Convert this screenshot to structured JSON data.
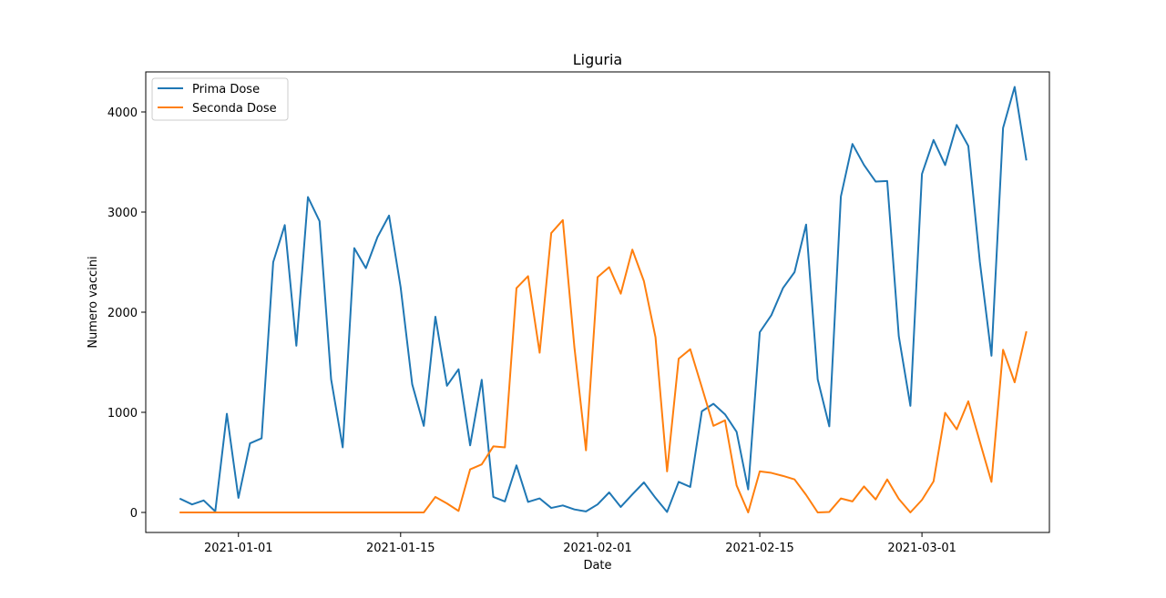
{
  "chart_data": {
    "type": "line",
    "title": "Liguria",
    "xlabel": "Date",
    "ylabel": "Numero vaccini",
    "xlim": [
      "2020-12-24",
      "2021-03-12"
    ],
    "ylim": [
      -200,
      4400
    ],
    "x_ticks": [
      "2021-01-01",
      "2021-01-15",
      "2021-02-01",
      "2021-02-15",
      "2021-03-01"
    ],
    "y_ticks": [
      0,
      1000,
      2000,
      3000,
      4000
    ],
    "grid": false,
    "legend_position": "top-left",
    "x": [
      "2020-12-27",
      "2020-12-28",
      "2020-12-29",
      "2020-12-30",
      "2020-12-31",
      "2021-01-01",
      "2021-01-02",
      "2021-01-03",
      "2021-01-04",
      "2021-01-05",
      "2021-01-06",
      "2021-01-07",
      "2021-01-08",
      "2021-01-09",
      "2021-01-10",
      "2021-01-11",
      "2021-01-12",
      "2021-01-13",
      "2021-01-14",
      "2021-01-15",
      "2021-01-16",
      "2021-01-17",
      "2021-01-18",
      "2021-01-19",
      "2021-01-20",
      "2021-01-21",
      "2021-01-22",
      "2021-01-23",
      "2021-01-24",
      "2021-01-25",
      "2021-01-26",
      "2021-01-27",
      "2021-01-28",
      "2021-01-29",
      "2021-01-30",
      "2021-01-31",
      "2021-02-01",
      "2021-02-02",
      "2021-02-03",
      "2021-02-04",
      "2021-02-05",
      "2021-02-06",
      "2021-02-07",
      "2021-02-08",
      "2021-02-09",
      "2021-02-10",
      "2021-02-11",
      "2021-02-12",
      "2021-02-13",
      "2021-02-14",
      "2021-02-15",
      "2021-02-16",
      "2021-02-17",
      "2021-02-18",
      "2021-02-19",
      "2021-02-20",
      "2021-02-21",
      "2021-02-22",
      "2021-02-23",
      "2021-02-24",
      "2021-02-25",
      "2021-02-26",
      "2021-02-27",
      "2021-02-28",
      "2021-03-01",
      "2021-03-02",
      "2021-03-03",
      "2021-03-04",
      "2021-03-05",
      "2021-03-06",
      "2021-03-07",
      "2021-03-08",
      "2021-03-09",
      "2021-03-10",
      "2021-03-11"
    ],
    "series": [
      {
        "name": "Prima Dose",
        "color": "#1f77b4",
        "values": [
          135,
          80,
          120,
          10,
          985,
          145,
          690,
          740,
          2500,
          2870,
          1665,
          3150,
          2910,
          1330,
          650,
          2640,
          2440,
          2750,
          2965,
          2250,
          1280,
          865,
          1955,
          1265,
          1430,
          670,
          1325,
          155,
          110,
          470,
          105,
          140,
          45,
          70,
          30,
          10,
          80,
          200,
          55,
          180,
          300,
          145,
          5,
          305,
          255,
          1010,
          1085,
          980,
          805,
          230,
          1800,
          1970,
          2240,
          2400,
          2875,
          1330,
          860,
          3155,
          3680,
          3470,
          3305,
          3310,
          1760,
          1065,
          3380,
          3720,
          3470,
          3870,
          3660,
          2500,
          1565,
          3840,
          4250,
          3525,
          null
        ]
      },
      {
        "name": "Seconda Dose",
        "color": "#ff7f0e",
        "values": [
          0,
          0,
          0,
          0,
          0,
          0,
          0,
          0,
          0,
          0,
          0,
          0,
          0,
          0,
          0,
          0,
          0,
          0,
          0,
          0,
          0,
          0,
          155,
          90,
          15,
          430,
          480,
          660,
          650,
          2240,
          2360,
          1595,
          2790,
          2920,
          1650,
          620,
          2350,
          2450,
          2185,
          2625,
          2310,
          1750,
          410,
          1535,
          1630,
          1250,
          865,
          920,
          270,
          0,
          410,
          395,
          365,
          330,
          175,
          0,
          5,
          140,
          110,
          260,
          130,
          330,
          135,
          0,
          125,
          310,
          995,
          830,
          1110,
          705,
          305,
          1625,
          1300,
          1800,
          null
        ]
      }
    ]
  }
}
